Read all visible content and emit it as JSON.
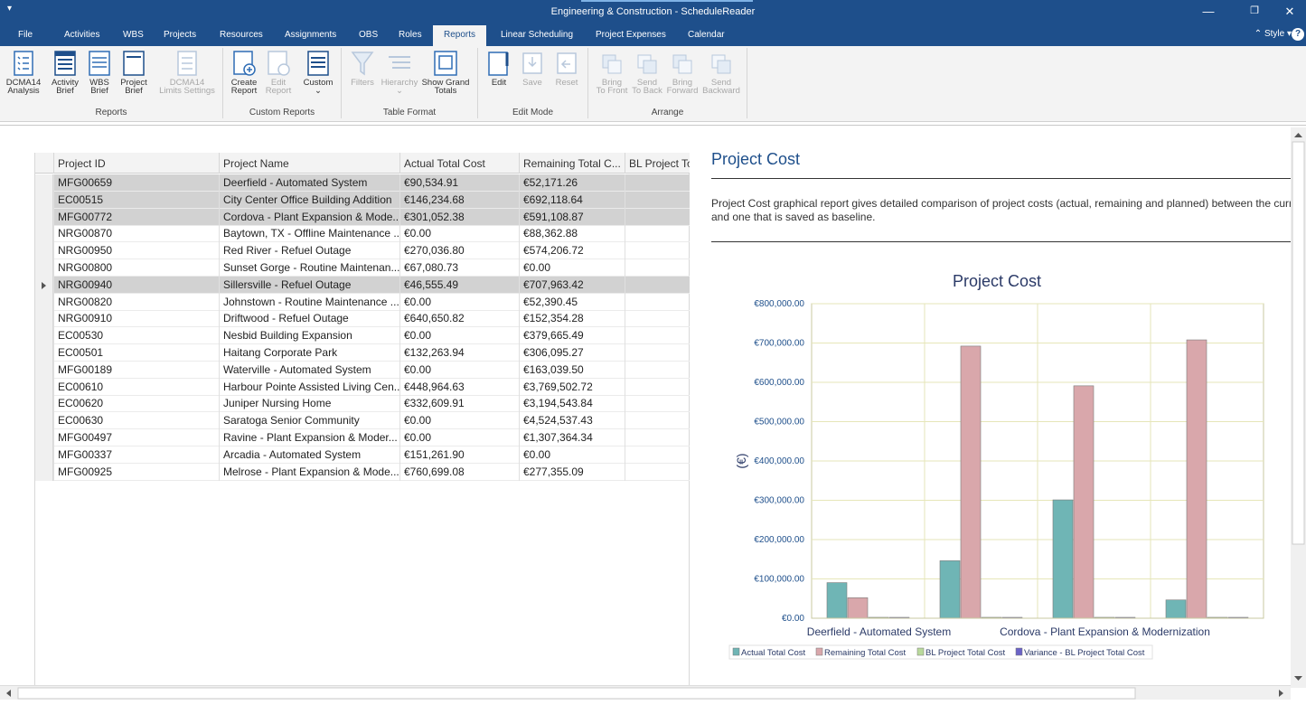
{
  "window": {
    "title": "Engineering & Construction - ScheduleReader"
  },
  "tabs": [
    "File",
    "Activities",
    "WBS",
    "Projects",
    "Resources",
    "Assignments",
    "OBS",
    "Roles",
    "Reports",
    "Linear Scheduling",
    "Project Expenses",
    "Calendar"
  ],
  "active_tab": "Reports",
  "style_label": "Style",
  "ribbon": {
    "groups": {
      "reports": "Reports",
      "custom_reports": "Custom Reports",
      "table_format": "Table Format",
      "edit_mode": "Edit Mode",
      "arrange": "Arrange"
    },
    "buttons": {
      "dcma14_analysis": [
        "DCMA14",
        "Analysis"
      ],
      "activity_brief": [
        "Activity",
        "Brief"
      ],
      "wbs_brief": [
        "WBS",
        "Brief"
      ],
      "project_brief": [
        "Project",
        "Brief"
      ],
      "dcma14_limits": [
        "DCMA14",
        "Limits Settings"
      ],
      "create_report": [
        "Create",
        "Report"
      ],
      "edit_report": [
        "Edit",
        "Report"
      ],
      "custom": [
        "Custom",
        ""
      ],
      "filters": [
        "Filters",
        ""
      ],
      "hierarchy": [
        "Hierarchy",
        ""
      ],
      "show_grand_totals": [
        "Show Grand",
        "Totals"
      ],
      "edit": [
        "Edit",
        ""
      ],
      "save": [
        "Save",
        ""
      ],
      "reset": [
        "Reset",
        ""
      ],
      "bring_to_front": [
        "Bring",
        "To Front"
      ],
      "send_to_back": [
        "Send",
        "To Back"
      ],
      "bring_forward": [
        "Bring",
        "Forward"
      ],
      "send_backward": [
        "Send",
        "Backward"
      ]
    }
  },
  "grid": {
    "columns": [
      "Project ID",
      "Project Name",
      "Actual Total Cost",
      "Remaining Total C...",
      "BL Project To"
    ],
    "rows": [
      [
        "MFG00659",
        "Deerfield - Automated System",
        "€90,534.91",
        "€52,171.26"
      ],
      [
        "EC00515",
        "City Center Office Building Addition",
        "€146,234.68",
        "€692,118.64"
      ],
      [
        "MFG00772",
        "Cordova - Plant Expansion & Mode...",
        "€301,052.38",
        "€591,108.87"
      ],
      [
        "NRG00870",
        "Baytown, TX - Offline Maintenance ...",
        "€0.00",
        "€88,362.88"
      ],
      [
        "NRG00950",
        "Red River - Refuel Outage",
        "€270,036.80",
        "€574,206.72"
      ],
      [
        "NRG00800",
        "Sunset Gorge - Routine Maintenan...",
        "€67,080.73",
        "€0.00"
      ],
      [
        "NRG00940",
        "Sillersville - Refuel Outage",
        "€46,555.49",
        "€707,963.42"
      ],
      [
        "NRG00820",
        "Johnstown - Routine Maintenance ...",
        "€0.00",
        "€52,390.45"
      ],
      [
        "NRG00910",
        "Driftwood - Refuel Outage",
        "€640,650.82",
        "€152,354.28"
      ],
      [
        "EC00530",
        "Nesbid Building Expansion",
        "€0.00",
        "€379,665.49"
      ],
      [
        "EC00501",
        "Haitang Corporate Park",
        "€132,263.94",
        "€306,095.27"
      ],
      [
        "MFG00189",
        "Waterville - Automated System",
        "€0.00",
        "€163,039.50"
      ],
      [
        "EC00610",
        "Harbour Pointe Assisted Living Cen...",
        "€448,964.63",
        "€3,769,502.72"
      ],
      [
        "EC00620",
        "Juniper Nursing Home",
        "€332,609.91",
        "€3,194,543.84"
      ],
      [
        "EC00630",
        "Saratoga Senior Community",
        "€0.00",
        "€4,524,537.43"
      ],
      [
        "MFG00497",
        "Ravine - Plant Expansion & Moder...",
        "€0.00",
        "€1,307,364.34"
      ],
      [
        "MFG00337",
        "Arcadia - Automated System",
        "€151,261.90",
        "€0.00"
      ],
      [
        "MFG00925",
        "Melrose - Plant Expansion & Mode...",
        "€760,699.08",
        "€277,355.09"
      ]
    ],
    "selected_rows": [
      0,
      1,
      2,
      6
    ],
    "current_row": 6
  },
  "report": {
    "title": "Project Cost",
    "description_line1": "Project Cost graphical report gives detailed comparison of project costs (actual, remaining and planned) between the curren",
    "description_line2": "and one that is saved as baseline."
  },
  "chart_data": {
    "type": "bar",
    "title": "Project Cost",
    "ylabel": "(€)",
    "xlabel": "",
    "ylim": [
      0,
      800000
    ],
    "yticks": [
      "€0.00",
      "€100,000.00",
      "€200,000.00",
      "€300,000.00",
      "€400,000.00",
      "€500,000.00",
      "€600,000.00",
      "€700,000.00",
      "€800,000.00"
    ],
    "category_labels": [
      "Deerfield - Automated System",
      "Cordova - Plant Expansion & Modernization"
    ],
    "series": [
      {
        "name": "Actual Total Cost",
        "color": "#6fb5b5",
        "values": [
          90534.91,
          146234.68,
          301052.38,
          46555.49
        ]
      },
      {
        "name": "Remaining Total Cost",
        "color": "#d9a7ab",
        "values": [
          52171.26,
          692118.64,
          591108.87,
          707963.42
        ]
      },
      {
        "name": "BL Project Total Cost",
        "color": "#b9d99b",
        "values": [
          0,
          0,
          0,
          0
        ]
      },
      {
        "name": "Variance - BL Project Total Cost",
        "color": "#6b63c7",
        "values": [
          0,
          0,
          0,
          0
        ]
      }
    ],
    "grid": true,
    "legend": "bottom"
  }
}
